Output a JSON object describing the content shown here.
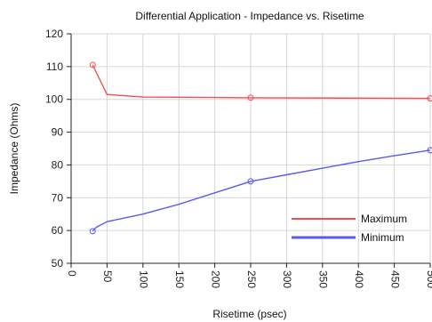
{
  "chart_data": {
    "type": "line",
    "title": "Differential Application - Impedance vs. Risetime",
    "xlabel": "Risetime (psec)",
    "ylabel": "Impedance (Ohms)",
    "xlim": [
      0,
      500
    ],
    "ylim": [
      50,
      120
    ],
    "xticks": [
      0,
      50,
      100,
      150,
      200,
      250,
      300,
      350,
      400,
      450,
      500
    ],
    "yticks": [
      50,
      60,
      70,
      80,
      90,
      100,
      110,
      120
    ],
    "grid": true,
    "legend_position": "bottom-right",
    "series": [
      {
        "name": "Maximum",
        "color": "#f05050",
        "x": [
          30,
          50,
          100,
          250,
          500
        ],
        "y": [
          110.5,
          101.5,
          100.7,
          100.5,
          100.3
        ],
        "markers": [
          30,
          250,
          500
        ]
      },
      {
        "name": "Minimum",
        "color": "#5a5af0",
        "x": [
          30,
          35,
          50,
          100,
          150,
          200,
          250,
          300,
          350,
          400,
          450,
          500
        ],
        "y": [
          59.8,
          61.0,
          62.7,
          65.0,
          68.0,
          71.5,
          75.0,
          77.0,
          79.0,
          81.0,
          82.8,
          84.5
        ],
        "markers": [
          30,
          250,
          500
        ]
      }
    ]
  }
}
